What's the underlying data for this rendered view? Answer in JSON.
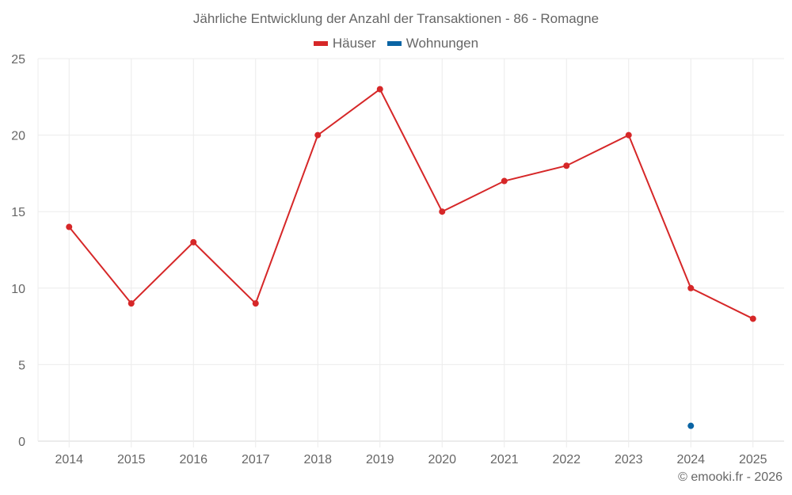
{
  "title": "Jährliche Entwicklung der Anzahl der Transaktionen - 86 - Romagne",
  "legend": [
    {
      "label": "Häuser",
      "color": "#d62728"
    },
    {
      "label": "Wohnungen",
      "color": "#0a64a4"
    }
  ],
  "credit": "© emooki.fr - 2026",
  "chart_data": {
    "type": "line",
    "title": "Jährliche Entwicklung der Anzahl der Transaktionen - 86 - Romagne",
    "xlabel": "",
    "ylabel": "",
    "categories": [
      "2014",
      "2015",
      "2016",
      "2017",
      "2018",
      "2019",
      "2020",
      "2021",
      "2022",
      "2023",
      "2024",
      "2025"
    ],
    "series": [
      {
        "name": "Häuser",
        "color": "#d62728",
        "values": [
          14,
          9,
          13,
          9,
          20,
          23,
          15,
          17,
          18,
          20,
          10,
          8
        ]
      },
      {
        "name": "Wohnungen",
        "color": "#0a64a4",
        "values": [
          null,
          null,
          null,
          null,
          null,
          null,
          null,
          null,
          null,
          null,
          1,
          null
        ]
      }
    ],
    "ylim": [
      0,
      25
    ],
    "yticks": [
      0,
      5,
      10,
      15,
      20,
      25
    ],
    "grid": true,
    "legend_position": "top"
  }
}
